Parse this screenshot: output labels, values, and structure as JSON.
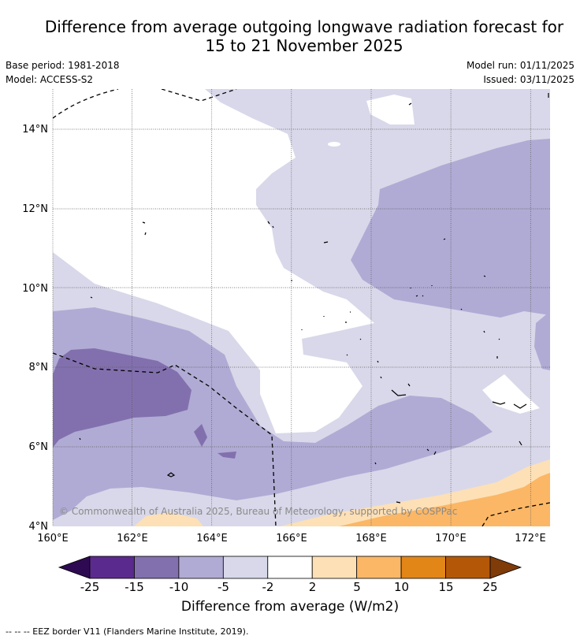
{
  "title": {
    "line1": "Difference from average outgoing longwave radiation forecast for",
    "line2": "15 to 21 November 2025"
  },
  "meta": {
    "base_period": "Base period: 1981-2018",
    "model": "Model: ACCESS-S2",
    "model_run": "Model run: 01/11/2025",
    "issued": "Issued: 03/11/2025"
  },
  "map": {
    "lat_labels": [
      "14°N",
      "12°N",
      "10°N",
      "8°N",
      "6°N",
      "4°N"
    ],
    "lon_labels": [
      "160°E",
      "162°E",
      "164°E",
      "166°E",
      "168°E",
      "170°E",
      "172°E"
    ],
    "copyright": "© Commonwealth of Australia 2025, Bureau of Meteorology, supported by COSPPac"
  },
  "colorbar": {
    "labels": [
      "-25",
      "-15",
      "-10",
      "-5",
      "-2",
      "2",
      "5",
      "10",
      "15",
      "25"
    ],
    "colors": [
      "#5b2a8e",
      "#8270ae",
      "#b0abd4",
      "#d8d8ea",
      "#ffffff",
      "#fde0b6",
      "#fbb765",
      "#e28618",
      "#b45807"
    ],
    "end_low_color": "#2e0a52",
    "end_high_color": "#7f3b08",
    "title": "Difference from average (W/m2)"
  },
  "footnote": "-- -- -- EEZ border V11 (Flanders Marine Institute, 2019)."
}
